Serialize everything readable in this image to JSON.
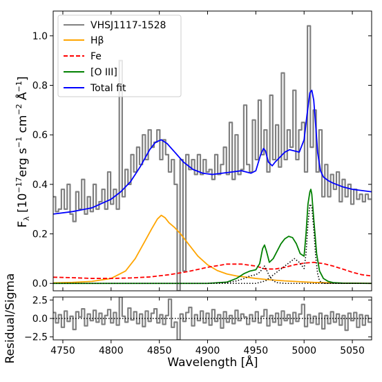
{
  "chart_data": [
    {
      "type": "line",
      "panel": "spectrum",
      "xlabel": "",
      "ylabel": "F_λ [10^-17 erg s^-1 cm^-2 Å^-1]",
      "ylabel_parts": [
        "F",
        "λ",
        " [10",
        "−17",
        "erg s",
        "−1",
        " cm",
        "−2",
        " Å",
        "−1",
        "]"
      ],
      "xlim": [
        4740,
        5070
      ],
      "ylim": [
        -0.03,
        1.1
      ],
      "yticks": [
        0.0,
        0.2,
        0.4,
        0.6,
        0.8,
        1.0
      ],
      "ytick_labels": [
        "0.0",
        "0.2",
        "0.4",
        "0.6",
        "0.8",
        "1.0"
      ],
      "legend": {
        "position": "top-left",
        "entries": [
          {
            "label": "VHSJ1117-1528",
            "color": "#808080",
            "style": "solid"
          },
          {
            "label": "Hβ",
            "color": "#ffa500",
            "style": "solid"
          },
          {
            "label": "Fe",
            "color": "#ff0000",
            "style": "dashed"
          },
          {
            "label": "[O III]",
            "color": "#008000",
            "style": "solid"
          },
          {
            "label": "Total fit",
            "color": "#0000ff",
            "style": "solid"
          }
        ]
      },
      "series": [
        {
          "name": "VHSJ1117-1528",
          "color": "#808080",
          "style": "steps",
          "x": [
            4741,
            4744,
            4747,
            4750,
            4753,
            4756,
            4759,
            4762,
            4765,
            4768,
            4771,
            4774,
            4777,
            4780,
            4783,
            4786,
            4789,
            4792,
            4795,
            4798,
            4801,
            4804,
            4807,
            4810,
            4813,
            4816,
            4819,
            4822,
            4825,
            4828,
            4831,
            4834,
            4837,
            4840,
            4843,
            4846,
            4849,
            4852,
            4855,
            4858,
            4861,
            4864,
            4867,
            4870,
            4873,
            4876,
            4879,
            4882,
            4885,
            4888,
            4891,
            4894,
            4897,
            4900,
            4903,
            4906,
            4909,
            4912,
            4915,
            4918,
            4921,
            4924,
            4927,
            4930,
            4933,
            4936,
            4939,
            4942,
            4945,
            4948,
            4951,
            4954,
            4957,
            4960,
            4963,
            4966,
            4969,
            4972,
            4975,
            4978,
            4981,
            4984,
            4987,
            4990,
            4993,
            4996,
            4999,
            5002,
            5005,
            5008,
            5011,
            5014,
            5017,
            5020,
            5023,
            5026,
            5029,
            5032,
            5035,
            5038,
            5041,
            5044,
            5047,
            5050,
            5053,
            5056,
            5059,
            5062,
            5065,
            5068
          ],
          "y": [
            0.35,
            0.29,
            0.3,
            0.38,
            0.3,
            0.4,
            0.28,
            0.25,
            0.37,
            0.3,
            0.42,
            0.28,
            0.35,
            0.29,
            0.4,
            0.3,
            0.33,
            0.38,
            0.3,
            0.45,
            0.32,
            0.38,
            0.3,
            0.9,
            0.35,
            0.46,
            0.4,
            0.52,
            0.45,
            0.55,
            0.48,
            0.6,
            0.5,
            0.62,
            0.55,
            0.57,
            0.62,
            0.5,
            0.58,
            0.52,
            0.45,
            0.5,
            0.4,
            -0.03,
            0.5,
            0.05,
            0.52,
            0.46,
            0.5,
            0.44,
            0.52,
            0.44,
            0.5,
            0.45,
            0.46,
            0.42,
            0.52,
            0.44,
            0.48,
            0.55,
            0.44,
            0.65,
            0.42,
            0.6,
            0.44,
            0.46,
            0.72,
            0.48,
            0.45,
            0.66,
            0.5,
            0.74,
            0.52,
            0.62,
            0.45,
            0.76,
            0.5,
            0.64,
            0.47,
            0.85,
            0.5,
            0.62,
            0.55,
            0.78,
            0.5,
            0.62,
            0.65,
            0.45,
            1.04,
            0.55,
            0.7,
            0.45,
            0.62,
            0.35,
            0.48,
            0.35,
            0.44,
            0.38,
            0.45,
            0.33,
            0.42,
            0.35,
            0.4,
            0.32,
            0.38,
            0.34,
            0.36,
            0.33,
            0.36,
            0.34
          ]
        },
        {
          "name": "Hβ",
          "color": "#ffa500",
          "style": "solid",
          "x": [
            4740,
            4760,
            4780,
            4800,
            4815,
            4825,
            4835,
            4842,
            4848,
            4852,
            4856,
            4860,
            4866,
            4872,
            4880,
            4890,
            4900,
            4910,
            4920,
            4930,
            4940,
            4950,
            4960,
            4970,
            4980,
            4990,
            5000,
            5010,
            5020,
            5030,
            5040,
            5050,
            5070
          ],
          "y": [
            0.002,
            0.004,
            0.008,
            0.02,
            0.05,
            0.1,
            0.17,
            0.22,
            0.26,
            0.275,
            0.265,
            0.245,
            0.225,
            0.2,
            0.16,
            0.11,
            0.075,
            0.052,
            0.038,
            0.03,
            0.025,
            0.02,
            0.016,
            0.013,
            0.01,
            0.008,
            0.006,
            0.004,
            0.003,
            0.002,
            0.001,
            0.001,
            0.0
          ]
        },
        {
          "name": "Fe",
          "color": "#ff0000",
          "style": "dashed",
          "x": [
            4740,
            4760,
            4780,
            4800,
            4820,
            4840,
            4860,
            4880,
            4900,
            4920,
            4935,
            4950,
            4960,
            4970,
            4980,
            4990,
            5000,
            5010,
            5020,
            5030,
            5040,
            5050,
            5060,
            5070
          ],
          "y": [
            0.025,
            0.023,
            0.02,
            0.02,
            0.022,
            0.026,
            0.035,
            0.048,
            0.065,
            0.078,
            0.078,
            0.07,
            0.058,
            0.058,
            0.065,
            0.075,
            0.082,
            0.085,
            0.08,
            0.07,
            0.058,
            0.045,
            0.035,
            0.03
          ]
        },
        {
          "name": "[O III]",
          "color": "#008000",
          "style": "solid",
          "x": [
            4740,
            4900,
            4920,
            4930,
            4938,
            4944,
            4950,
            4954,
            4957,
            4959,
            4961,
            4964,
            4968,
            4972,
            4976,
            4980,
            4984,
            4988,
            4992,
            4996,
            5000,
            5002,
            5004,
            5006,
            5007,
            5008,
            5010,
            5013,
            5016,
            5020,
            5025,
            5030,
            5040,
            5070
          ],
          "y": [
            0.0,
            0.0,
            0.005,
            0.02,
            0.04,
            0.05,
            0.055,
            0.08,
            0.14,
            0.155,
            0.13,
            0.085,
            0.1,
            0.13,
            0.16,
            0.18,
            0.19,
            0.185,
            0.16,
            0.12,
            0.11,
            0.2,
            0.32,
            0.37,
            0.38,
            0.36,
            0.26,
            0.12,
            0.05,
            0.02,
            0.008,
            0.003,
            0.001,
            0.0
          ]
        },
        {
          "name": "Total fit",
          "color": "#0000ff",
          "style": "solid",
          "x": [
            4740,
            4760,
            4780,
            4800,
            4810,
            4820,
            4830,
            4840,
            4846,
            4852,
            4858,
            4866,
            4875,
            4885,
            4895,
            4905,
            4915,
            4925,
            4935,
            4945,
            4950,
            4955,
            4958,
            4960,
            4963,
            4967,
            4970,
            4975,
            4980,
            4985,
            4990,
            4995,
            5000,
            5003,
            5006,
            5008,
            5010,
            5012,
            5014,
            5017,
            5020,
            5025,
            5030,
            5040,
            5050,
            5060,
            5070
          ],
          "y": [
            0.28,
            0.29,
            0.305,
            0.34,
            0.37,
            0.41,
            0.47,
            0.54,
            0.57,
            0.58,
            0.565,
            0.53,
            0.49,
            0.46,
            0.445,
            0.44,
            0.445,
            0.45,
            0.455,
            0.445,
            0.455,
            0.52,
            0.545,
            0.535,
            0.49,
            0.475,
            0.49,
            0.51,
            0.53,
            0.54,
            0.535,
            0.53,
            0.58,
            0.68,
            0.77,
            0.78,
            0.74,
            0.64,
            0.53,
            0.455,
            0.43,
            0.415,
            0.405,
            0.39,
            0.38,
            0.375,
            0.37
          ]
        },
        {
          "name": "",
          "color": "#000000",
          "style": "dotted",
          "x": [
            4740,
            4950,
            4960,
            4970,
            4980,
            4990,
            4995,
            5000,
            5002,
            5004,
            5006,
            5008,
            5010,
            5012,
            5014,
            5016,
            5020,
            5070
          ],
          "y": [
            0.0,
            0.0,
            0.01,
            0.04,
            0.07,
            0.1,
            0.085,
            0.06,
            0.12,
            0.24,
            0.32,
            0.31,
            0.22,
            0.11,
            0.04,
            0.01,
            0.0,
            0.0
          ]
        },
        {
          "name": "",
          "color": "#000000",
          "style": "dotted",
          "x": [
            4740,
            4900,
            4920,
            4930,
            4938,
            4944,
            4950,
            4954,
            4957,
            4959,
            4961,
            4964,
            4968,
            4972,
            4980,
            5070
          ],
          "y": [
            0.0,
            0.0,
            0.003,
            0.01,
            0.02,
            0.03,
            0.035,
            0.045,
            0.06,
            0.07,
            0.055,
            0.03,
            0.01,
            0.003,
            0.0,
            0.0
          ]
        }
      ]
    },
    {
      "type": "line",
      "panel": "residual",
      "xlabel": "Wavelength [Å]",
      "ylabel": "Residual/Sigma",
      "xlim": [
        4740,
        5070
      ],
      "ylim": [
        -2.9,
        2.9
      ],
      "xticks": [
        4750,
        4800,
        4850,
        4900,
        4950,
        5000,
        5050
      ],
      "xtick_labels": [
        "4750",
        "4800",
        "4850",
        "4900",
        "4950",
        "5000",
        "5050"
      ],
      "yticks": [
        -2.5,
        0.0,
        2.5
      ],
      "ytick_labels": [
        "−2.5",
        "0.0",
        "2.5"
      ],
      "series": [
        {
          "name": "",
          "color": "#808080",
          "style": "steps",
          "x": [
            4741,
            4744,
            4747,
            4750,
            4753,
            4756,
            4759,
            4762,
            4765,
            4768,
            4771,
            4774,
            4777,
            4780,
            4783,
            4786,
            4789,
            4792,
            4795,
            4798,
            4801,
            4804,
            4807,
            4810,
            4813,
            4816,
            4819,
            4822,
            4825,
            4828,
            4831,
            4834,
            4837,
            4840,
            4843,
            4846,
            4849,
            4852,
            4855,
            4858,
            4861,
            4864,
            4867,
            4870,
            4873,
            4876,
            4879,
            4882,
            4885,
            4888,
            4891,
            4894,
            4897,
            4900,
            4903,
            4906,
            4909,
            4912,
            4915,
            4918,
            4921,
            4924,
            4927,
            4930,
            4933,
            4936,
            4939,
            4942,
            4945,
            4948,
            4951,
            4954,
            4957,
            4960,
            4963,
            4966,
            4969,
            4972,
            4975,
            4978,
            4981,
            4984,
            4987,
            4990,
            4993,
            4996,
            4999,
            5002,
            5005,
            5008,
            5011,
            5014,
            5017,
            5020,
            5023,
            5026,
            5029,
            5032,
            5035,
            5038,
            5041,
            5044,
            5047,
            5050,
            5053,
            5056,
            5059,
            5062,
            5065,
            5068
          ],
          "y": [
            0.8,
            -0.6,
            0.5,
            -1.2,
            1.0,
            -0.4,
            0.3,
            -1.5,
            0.9,
            0.2,
            1.3,
            -1.0,
            0.6,
            -0.3,
            1.1,
            -0.5,
            0.7,
            -0.8,
            0.4,
            1.2,
            -0.6,
            0.8,
            -0.9,
            2.9,
            0.3,
            -0.5,
            1.4,
            -0.2,
            0.9,
            -0.7,
            0.6,
            -1.1,
            1.0,
            -0.4,
            0.7,
            1.3,
            -0.6,
            0.5,
            -0.8,
            0.4,
            2.6,
            -1.2,
            -0.5,
            -2.9,
            0.6,
            -0.4,
            0.8,
            1.5,
            -1.0,
            0.5,
            -0.3,
            1.0,
            -0.6,
            0.7,
            -0.9,
            1.2,
            -0.4,
            0.5,
            -1.3,
            0.9,
            -0.5,
            0.4,
            -0.7,
            1.1,
            -0.3,
            0.6,
            0.2,
            -0.8,
            0.5,
            -0.4,
            0.9,
            -0.6,
            0.3,
            1.2,
            -1.0,
            0.4,
            -0.5,
            0.7,
            -0.9,
            1.0,
            -0.3,
            0.5,
            -0.7,
            0.8,
            -0.4,
            0.6,
            1.9,
            -1.1,
            0.5,
            -0.6,
            0.3,
            -0.8,
            0.7,
            -1.4,
            0.4,
            -0.7,
            0.9,
            -0.5,
            0.6,
            -0.9,
            0.4,
            -1.6,
            0.7,
            -0.3,
            0.8,
            -1.2,
            0.5,
            -0.9,
            0.4,
            -0.5
          ]
        },
        {
          "name": "",
          "color": "#000000",
          "style": "dotted",
          "x": [
            4740,
            5070
          ],
          "y": [
            0,
            0
          ]
        }
      ]
    }
  ]
}
